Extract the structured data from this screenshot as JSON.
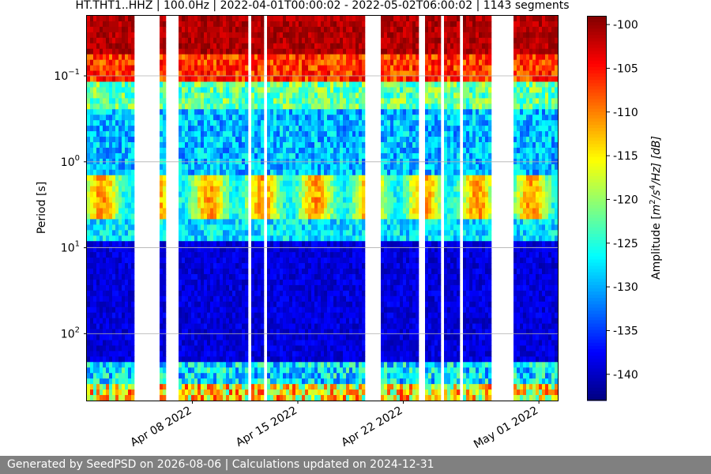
{
  "chart_data": {
    "type": "heatmap",
    "title": "HT.THT1..HHZ | 100.0Hz | 2022-04-01T00:00:02 - 2022-05-02T06:00:02 | 1143 segments",
    "ylabel": "Period [s]",
    "colorbar_label": "Amplitude [m²/s⁴/Hz] [dB]",
    "colorbar_label_parts": {
      "prefix": "Amplitude [",
      "unit_base": "m",
      "exp1": "2",
      "mid": "/s",
      "exp2": "4",
      "suffix": "/Hz] [dB]"
    },
    "colormap": "jet",
    "clim": [
      -143,
      -99
    ],
    "colorbar_ticks": [
      "-100",
      "-105",
      "-110",
      "-115",
      "-120",
      "-125",
      "-130",
      "-135",
      "-140"
    ],
    "colorbar_tick_values": [
      -100,
      -105,
      -110,
      -115,
      -120,
      -125,
      -130,
      -135,
      -140
    ],
    "x_range": [
      "2022-04-01T00:00:02",
      "2022-05-02T06:00:02"
    ],
    "x_ticks": [
      {
        "date": "2022-04-08",
        "label": "Apr 08 2022"
      },
      {
        "date": "2022-04-15",
        "label": "Apr 15 2022"
      },
      {
        "date": "2022-04-22",
        "label": "Apr 22 2022"
      },
      {
        "date": "2022-05-01",
        "label": "May 01 2022"
      }
    ],
    "y_scale": "log",
    "y_inverted": true,
    "ylim": [
      0.02,
      600
    ],
    "y_ticks": [
      {
        "value": 0.1,
        "base": "10",
        "exp": "−1"
      },
      {
        "value": 1,
        "base": "10",
        "exp": "0"
      },
      {
        "value": 10,
        "base": "10",
        "exp": "1"
      },
      {
        "value": 100,
        "base": "10",
        "exp": "2"
      }
    ],
    "grid": true,
    "data_gaps": [
      [
        "2022-04-04T05:00:00",
        "2022-04-05T21:00:00"
      ],
      [
        "2022-04-06T06:00:00",
        "2022-04-07T00:00:00"
      ],
      [
        "2022-04-11T18:00:00",
        "2022-04-11T22:00:00"
      ],
      [
        "2022-04-12T19:00:00",
        "2022-04-13T00:00:00"
      ],
      [
        "2022-04-19T13:00:00",
        "2022-04-20T13:00:00"
      ],
      [
        "2022-04-23T03:00:00",
        "2022-04-23T10:00:00"
      ],
      [
        "2022-04-24T10:00:00",
        "2022-04-24T18:00:00"
      ],
      [
        "2022-04-25T18:00:00",
        "2022-04-25T21:00:00"
      ],
      [
        "2022-04-27T22:00:00",
        "2022-04-29T07:00:00"
      ]
    ]
  },
  "footer": {
    "text": "Generated by SeedPSD on 2026-08-06 | Calculations updated on 2024-12-31",
    "background": "#808080"
  }
}
